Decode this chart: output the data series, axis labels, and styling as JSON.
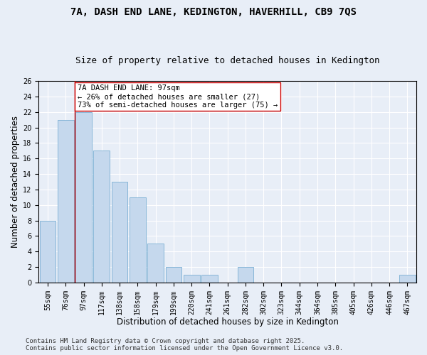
{
  "title_line1": "7A, DASH END LANE, KEDINGTON, HAVERHILL, CB9 7QS",
  "title_line2": "Size of property relative to detached houses in Kedington",
  "xlabel": "Distribution of detached houses by size in Kedington",
  "ylabel": "Number of detached properties",
  "categories": [
    "55sqm",
    "76sqm",
    "97sqm",
    "117sqm",
    "138sqm",
    "158sqm",
    "179sqm",
    "199sqm",
    "220sqm",
    "241sqm",
    "261sqm",
    "282sqm",
    "302sqm",
    "323sqm",
    "344sqm",
    "364sqm",
    "385sqm",
    "405sqm",
    "426sqm",
    "446sqm",
    "467sqm"
  ],
  "values": [
    8,
    21,
    22,
    17,
    13,
    11,
    5,
    2,
    1,
    1,
    0,
    2,
    0,
    0,
    0,
    0,
    0,
    0,
    0,
    0,
    1
  ],
  "bar_color": "#c5d8ed",
  "bar_edge_color": "#7aafd4",
  "vline_x": 1.5,
  "vline_color": "#cc0000",
  "annotation_text": "7A DASH END LANE: 97sqm\n← 26% of detached houses are smaller (27)\n73% of semi-detached houses are larger (75) →",
  "annotation_box_color": "#ffffff",
  "annotation_box_edge": "#cc0000",
  "ylim": [
    0,
    26
  ],
  "yticks": [
    0,
    2,
    4,
    6,
    8,
    10,
    12,
    14,
    16,
    18,
    20,
    22,
    24,
    26
  ],
  "footer_line1": "Contains HM Land Registry data © Crown copyright and database right 2025.",
  "footer_line2": "Contains public sector information licensed under the Open Government Licence v3.0.",
  "background_color": "#e8eef7",
  "grid_color": "#ffffff",
  "title_fontsize": 10,
  "subtitle_fontsize": 9,
  "axis_label_fontsize": 8.5,
  "tick_fontsize": 7,
  "annotation_fontsize": 7.5,
  "footer_fontsize": 6.5
}
